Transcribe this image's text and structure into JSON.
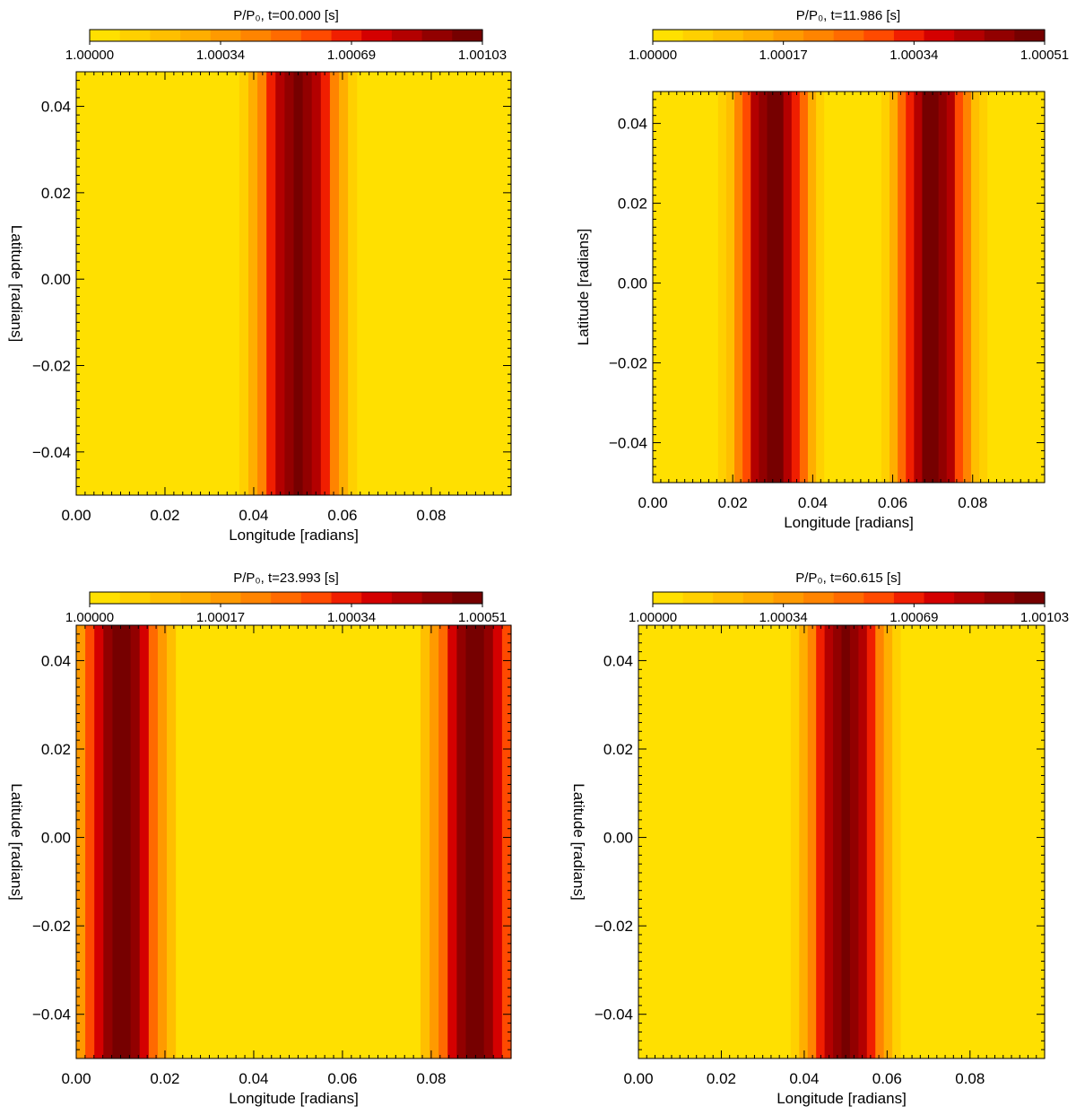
{
  "figure": {
    "description_free": true
  },
  "colormap": [
    "#FFE000",
    "#FFD000",
    "#FFBF00",
    "#FFAE00",
    "#FF9A00",
    "#FF8400",
    "#FF6A00",
    "#FF4A00",
    "#F01E00",
    "#D40000",
    "#B30000",
    "#920000",
    "#760000"
  ],
  "chart_data": [
    {
      "type": "heatmap",
      "title": "P/P₀, t=00.000  [s]",
      "colorbar": {
        "ticks": [
          "1.00000",
          "1.00034",
          "1.00069",
          "1.00103"
        ],
        "range": [
          1.0,
          1.00103
        ]
      },
      "xlabel": "Longitude [radians]",
      "ylabel": "Latitude [radians]",
      "xlim": [
        0.0,
        0.098
      ],
      "ylim": [
        -0.05,
        0.048
      ],
      "xticks": [
        "0.00",
        "0.02",
        "0.04",
        "0.06",
        "0.08"
      ],
      "yticks": [
        "0.04",
        "0.02",
        "0.00",
        "−0.02",
        "−0.04"
      ],
      "field": {
        "peaks_longitude": [
          0.05
        ],
        "peak_value": 1.00103,
        "half_width": 0.015
      }
    },
    {
      "type": "heatmap",
      "title": "P/P₀, t=11.986  [s]",
      "colorbar": {
        "ticks": [
          "1.00000",
          "1.00017",
          "1.00034",
          "1.00051"
        ],
        "range": [
          1.0,
          1.00051
        ]
      },
      "xlabel": "Longitude [radians]",
      "ylabel": "Latitude [radians]",
      "xlim": [
        0.0,
        0.098
      ],
      "ylim": [
        -0.05,
        0.048
      ],
      "xticks": [
        "0.00",
        "0.02",
        "0.04",
        "0.06",
        "0.08"
      ],
      "yticks": [
        "0.04",
        "0.02",
        "0.00",
        "−0.02",
        "−0.04"
      ],
      "field": {
        "peaks_longitude": [
          0.03,
          0.07
        ],
        "peak_value": 1.00051,
        "half_width": 0.015
      }
    },
    {
      "type": "heatmap",
      "title": "P/P₀, t=23.993  [s]",
      "colorbar": {
        "ticks": [
          "1.00000",
          "1.00017",
          "1.00034",
          "1.00051"
        ],
        "range": [
          1.0,
          1.00051
        ]
      },
      "xlabel": "Longitude [radians]",
      "ylabel": "Latitude [radians]",
      "xlim": [
        0.0,
        0.098
      ],
      "ylim": [
        -0.05,
        0.048
      ],
      "xticks": [
        "0.00",
        "0.02",
        "0.04",
        "0.06",
        "0.08"
      ],
      "yticks": [
        "0.04",
        "0.02",
        "0.00",
        "−0.02",
        "−0.04"
      ],
      "field": {
        "peaks_longitude": [
          0.01,
          0.09
        ],
        "peak_value": 1.00051,
        "half_width": 0.015
      }
    },
    {
      "type": "heatmap",
      "title": "P/P₀, t=60.615  [s]",
      "colorbar": {
        "ticks": [
          "1.00000",
          "1.00034",
          "1.00069",
          "1.00103"
        ],
        "range": [
          1.0,
          1.00103
        ]
      },
      "xlabel": "Longitude [radians]",
      "ylabel": "Latitude [radians]",
      "xlim": [
        0.0,
        0.098
      ],
      "ylim": [
        -0.05,
        0.048
      ],
      "xticks": [
        "0.00",
        "0.02",
        "0.04",
        "0.06",
        "0.08"
      ],
      "yticks": [
        "0.04",
        "0.02",
        "0.00",
        "−0.02",
        "−0.04"
      ],
      "field": {
        "peaks_longitude": [
          0.05
        ],
        "peak_value": 1.00103,
        "half_width": 0.015
      }
    }
  ]
}
